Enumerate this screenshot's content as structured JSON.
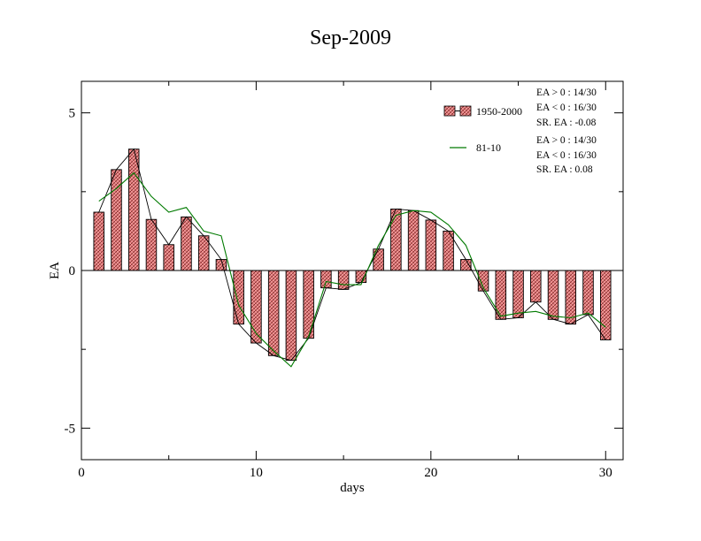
{
  "chart_data": {
    "type": "bar",
    "title": "Sep-2009",
    "xlabel": "days",
    "ylabel": "EA",
    "xlim": [
      0,
      31
    ],
    "ylim": [
      -6,
      6
    ],
    "x_ticks": [
      0,
      10,
      20,
      30
    ],
    "x_tick_labels": [
      "0",
      "10",
      "20",
      "30"
    ],
    "y_ticks": [
      5,
      0,
      -5
    ],
    "y_tick_labels": [
      "5",
      "0",
      "-5"
    ],
    "legend_position": "top-right",
    "grid": false,
    "days": [
      1,
      2,
      3,
      4,
      5,
      6,
      7,
      8,
      9,
      10,
      11,
      12,
      13,
      14,
      15,
      16,
      17,
      18,
      19,
      20,
      21,
      22,
      23,
      24,
      25,
      26,
      27,
      28,
      29,
      30
    ],
    "series": [
      {
        "name": "1950-2000",
        "kind": "bar",
        "color": "#e07878",
        "values": [
          1.85,
          3.2,
          3.85,
          1.62,
          0.82,
          1.7,
          1.1,
          0.35,
          -1.7,
          -2.3,
          -2.7,
          -2.85,
          -2.15,
          -0.55,
          -0.6,
          -0.38,
          0.68,
          1.95,
          1.9,
          1.6,
          1.25,
          0.35,
          -0.65,
          -1.55,
          -1.5,
          -1.0,
          -1.55,
          -1.7,
          -1.4,
          -2.2
        ],
        "stats": [
          "EA > 0 : 14/30",
          "EA < 0 : 16/30",
          "SR. EA : -0.08"
        ]
      },
      {
        "name": "81-10",
        "kind": "line",
        "color": "#007a00",
        "values": [
          2.2,
          2.6,
          3.1,
          2.35,
          1.85,
          2.0,
          1.25,
          1.1,
          -1.1,
          -2.0,
          -2.55,
          -3.05,
          -2.1,
          -0.35,
          -0.45,
          -0.45,
          0.8,
          1.75,
          1.9,
          1.85,
          1.45,
          0.8,
          -0.55,
          -1.45,
          -1.35,
          -1.3,
          -1.45,
          -1.5,
          -1.35,
          -1.8
        ],
        "stats": [
          "EA > 0 : 14/30",
          "EA < 0 : 16/30",
          "SR. EA :  0.08"
        ]
      }
    ],
    "colors": {
      "bar_fill": "#e07878",
      "bar_stroke": "#000000",
      "bar_connector": "#000000",
      "line": "#007a00"
    }
  }
}
